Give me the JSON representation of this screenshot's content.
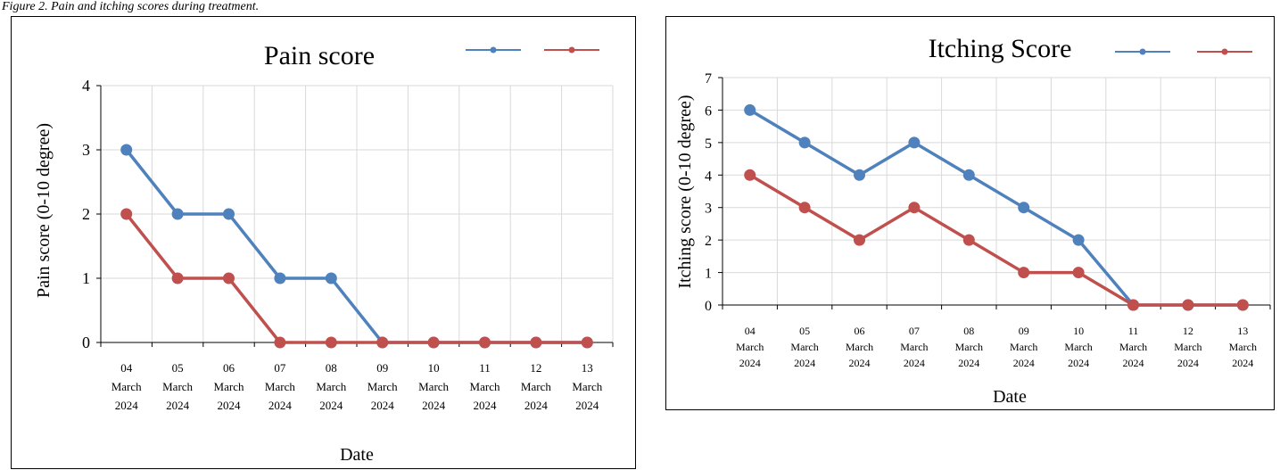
{
  "caption": "Figure 2. Pain and itching scores during treatment.",
  "colors": {
    "series_a": "#4f81bd",
    "series_b": "#c0504d",
    "grid": "#d9d9d9",
    "axis": "#000000"
  },
  "chart_data": [
    {
      "type": "line",
      "title": "Pain score",
      "xlabel": "Date",
      "ylabel": "Pain score (0-10 degree)",
      "ylim": [
        0,
        4
      ],
      "yticks": [
        0,
        1,
        2,
        3,
        4
      ],
      "grid": true,
      "legend": "top-right",
      "categories": [
        [
          "04",
          "March",
          "2024"
        ],
        [
          "05",
          "March",
          "2024"
        ],
        [
          "06",
          "March",
          "2024"
        ],
        [
          "07",
          "March",
          "2024"
        ],
        [
          "08",
          "March",
          "2024"
        ],
        [
          "09",
          "March",
          "2024"
        ],
        [
          "10",
          "March",
          "2024"
        ],
        [
          "11",
          "March",
          "2024"
        ],
        [
          "12",
          "March",
          "2024"
        ],
        [
          "13",
          "March",
          "2024"
        ]
      ],
      "series": [
        {
          "color": "#4f81bd",
          "values": [
            3,
            2,
            2,
            1,
            1,
            0,
            0,
            0,
            0,
            0
          ]
        },
        {
          "color": "#c0504d",
          "values": [
            2,
            1,
            1,
            0,
            0,
            0,
            0,
            0,
            0,
            0
          ]
        }
      ]
    },
    {
      "type": "line",
      "title": "Itching Score",
      "xlabel": "Date",
      "ylabel": "Itching score (0-10 degree)",
      "ylim": [
        0,
        7
      ],
      "yticks": [
        0,
        1,
        2,
        3,
        4,
        5,
        6,
        7
      ],
      "grid": true,
      "legend": "top-right",
      "categories": [
        [
          "04",
          "March",
          "2024"
        ],
        [
          "05",
          "March",
          "2024"
        ],
        [
          "06",
          "March",
          "2024"
        ],
        [
          "07",
          "March",
          "2024"
        ],
        [
          "08",
          "March",
          "2024"
        ],
        [
          "09",
          "March",
          "2024"
        ],
        [
          "10",
          "March",
          "2024"
        ],
        [
          "11",
          "March",
          "2024"
        ],
        [
          "12",
          "March",
          "2024"
        ],
        [
          "13",
          "March",
          "2024"
        ]
      ],
      "series": [
        {
          "color": "#4f81bd",
          "values": [
            6,
            5,
            4,
            5,
            4,
            3,
            2,
            0,
            0,
            0
          ]
        },
        {
          "color": "#c0504d",
          "values": [
            4,
            3,
            2,
            3,
            2,
            1,
            1,
            0,
            0,
            0
          ]
        }
      ]
    }
  ]
}
